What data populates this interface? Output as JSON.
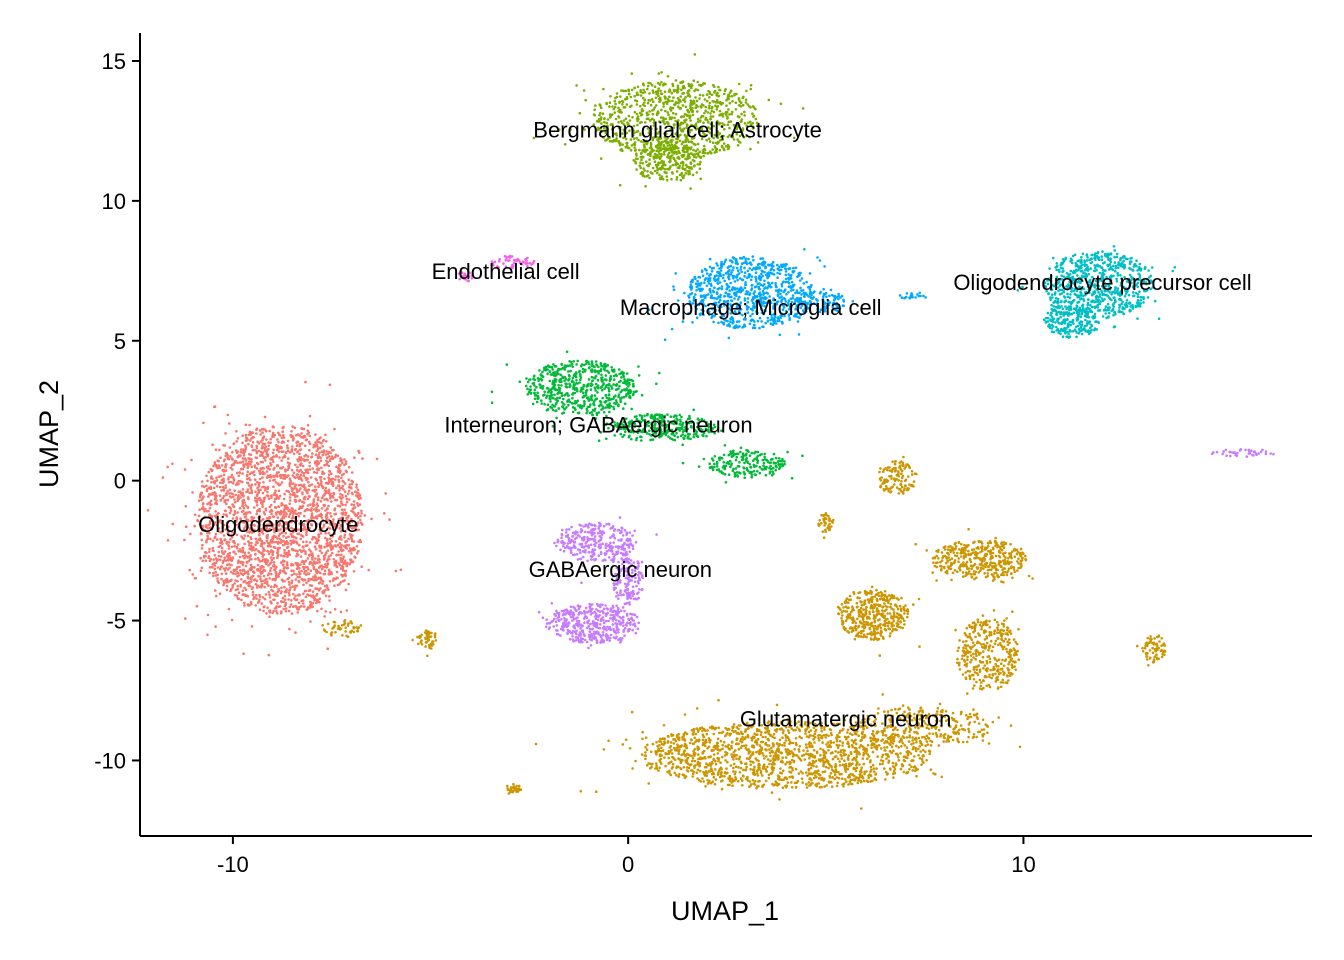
{
  "chart_data": {
    "type": "scatter",
    "title": "",
    "xlabel": "UMAP_1",
    "ylabel": "UMAP_2",
    "xlim": [
      -12.35,
      17.3
    ],
    "ylim": [
      -12.7,
      16.0
    ],
    "x_ticks": [
      -10,
      0,
      10
    ],
    "x_tick_labels": [
      "-10",
      "0",
      "10"
    ],
    "y_ticks": [
      15,
      10,
      5,
      0,
      -5,
      -10
    ],
    "y_tick_labels": [
      "15",
      "10",
      "5",
      "0",
      "-5",
      "-10"
    ],
    "grid": false,
    "legend": "none",
    "clusters": [
      {
        "label": "Oligodendrocyte",
        "color": "#F8766D",
        "label_x": -8.85,
        "label_y": -1.55,
        "blobs": [
          {
            "x": -8.8,
            "y": -1.4,
            "rx": 2.1,
            "ry": 3.4,
            "n": 2600
          }
        ]
      },
      {
        "label": "Bergmann glial cell; Astrocyte",
        "color": "#7CAE00",
        "label_x": 1.25,
        "label_y": 12.55,
        "blobs": [
          {
            "x": 1.2,
            "y": 12.9,
            "rx": 2.1,
            "ry": 1.4,
            "n": 900
          },
          {
            "x": 1.0,
            "y": 11.4,
            "rx": 0.9,
            "ry": 0.7,
            "n": 250
          }
        ]
      },
      {
        "label": "Endothelial cell",
        "color": "#F564E3",
        "label_x": -3.1,
        "label_y": 7.5,
        "blobs": [
          {
            "x": -2.9,
            "y": 7.8,
            "rx": 0.6,
            "ry": 0.25,
            "n": 50
          },
          {
            "x": -4.1,
            "y": 7.3,
            "rx": 0.2,
            "ry": 0.2,
            "n": 20
          }
        ]
      },
      {
        "label": "Macrophage; Microglia cell",
        "color": "#00A9FF",
        "label_x": 3.1,
        "label_y": 6.2,
        "blobs": [
          {
            "x": 3.1,
            "y": 6.7,
            "rx": 1.6,
            "ry": 1.3,
            "n": 800
          },
          {
            "x": 4.9,
            "y": 6.4,
            "rx": 0.6,
            "ry": 0.4,
            "n": 90
          },
          {
            "x": 7.2,
            "y": 6.6,
            "rx": 0.4,
            "ry": 0.1,
            "n": 20
          }
        ]
      },
      {
        "label": "Oligodendrocyte precursor cell",
        "color": "#00BFC4",
        "label_x": 12.0,
        "label_y": 7.1,
        "blobs": [
          {
            "x": 11.9,
            "y": 7.0,
            "rx": 1.4,
            "ry": 1.2,
            "n": 700
          },
          {
            "x": 11.2,
            "y": 5.7,
            "rx": 0.7,
            "ry": 0.6,
            "n": 200
          }
        ]
      },
      {
        "label": "Interneuron; GABAergic neuron",
        "color": "#00BA38",
        "label_x": -0.75,
        "label_y": 2.0,
        "blobs": [
          {
            "x": -1.2,
            "y": 3.3,
            "rx": 1.4,
            "ry": 1.0,
            "n": 600
          },
          {
            "x": 0.8,
            "y": 1.9,
            "rx": 1.4,
            "ry": 0.5,
            "n": 300
          },
          {
            "x": 3.0,
            "y": 0.6,
            "rx": 1.0,
            "ry": 0.5,
            "n": 200
          }
        ]
      },
      {
        "label": "GABAergic neuron",
        "color": "#C77CFF",
        "label_x": -0.2,
        "label_y": -3.15,
        "blobs": [
          {
            "x": -0.8,
            "y": -2.2,
            "rx": 1.0,
            "ry": 0.7,
            "n": 300
          },
          {
            "x": -0.9,
            "y": -5.1,
            "rx": 1.2,
            "ry": 0.7,
            "n": 420
          },
          {
            "x": 0.0,
            "y": -3.6,
            "rx": 0.4,
            "ry": 0.9,
            "n": 150
          },
          {
            "x": 15.5,
            "y": 1.0,
            "rx": 0.8,
            "ry": 0.15,
            "n": 40
          }
        ]
      },
      {
        "label": "Glutamatergic neuron",
        "color": "#CD9600",
        "label_x": 5.5,
        "label_y": -8.5,
        "blobs": [
          {
            "x": 4.0,
            "y": -9.8,
            "rx": 3.7,
            "ry": 1.2,
            "n": 1500
          },
          {
            "x": 7.5,
            "y": -8.8,
            "rx": 1.8,
            "ry": 0.7,
            "n": 300
          },
          {
            "x": 6.2,
            "y": -4.8,
            "rx": 0.9,
            "ry": 0.9,
            "n": 400
          },
          {
            "x": 8.9,
            "y": -2.8,
            "rx": 1.2,
            "ry": 0.7,
            "n": 400
          },
          {
            "x": 9.1,
            "y": -6.2,
            "rx": 0.8,
            "ry": 1.3,
            "n": 350
          },
          {
            "x": 6.8,
            "y": 0.1,
            "rx": 0.5,
            "ry": 0.6,
            "n": 120
          },
          {
            "x": 13.3,
            "y": -6.0,
            "rx": 0.3,
            "ry": 0.5,
            "n": 70
          },
          {
            "x": -5.1,
            "y": -5.7,
            "rx": 0.25,
            "ry": 0.35,
            "n": 50
          },
          {
            "x": -2.9,
            "y": -11.0,
            "rx": 0.2,
            "ry": 0.15,
            "n": 30
          },
          {
            "x": -7.2,
            "y": -5.3,
            "rx": 0.5,
            "ry": 0.3,
            "n": 50
          },
          {
            "x": 5.0,
            "y": -1.5,
            "rx": 0.2,
            "ry": 0.35,
            "n": 40
          }
        ]
      }
    ]
  }
}
